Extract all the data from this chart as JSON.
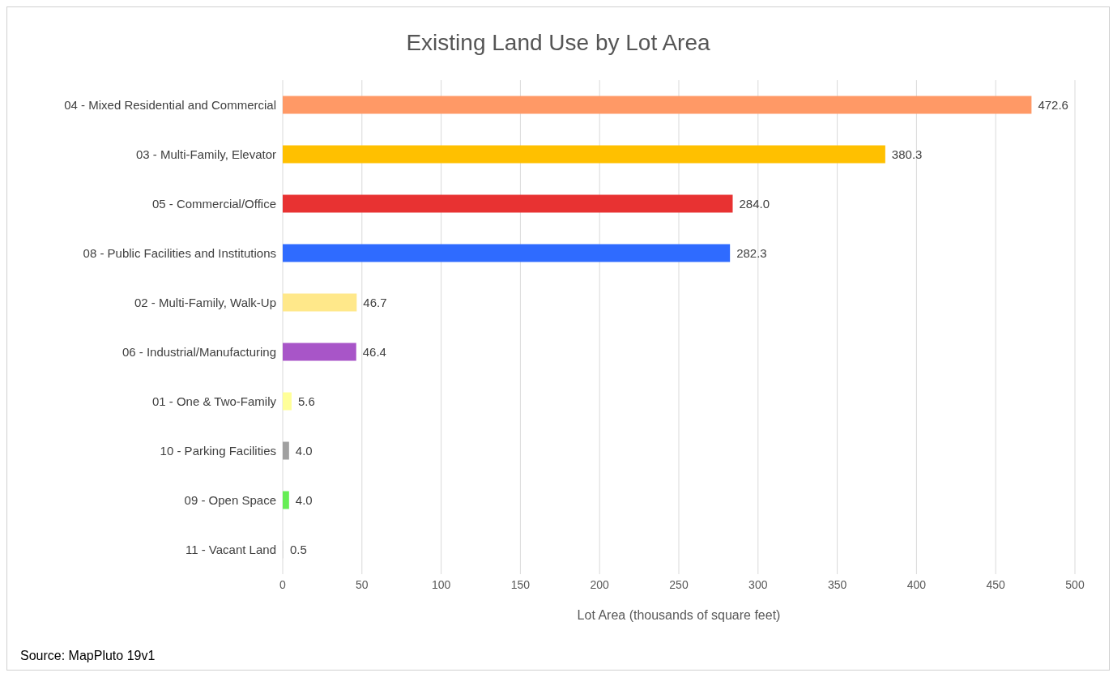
{
  "chart_data": {
    "type": "bar",
    "orientation": "horizontal",
    "title": "Existing Land Use by Lot Area",
    "xlabel": "Lot Area  (thousands of square feet)",
    "categories": [
      "04 - Mixed Residential and Commercial",
      "03 - Multi-Family, Elevator",
      "05 - Commercial/Office",
      "08 - Public Facilities and Institutions",
      "02 - Multi-Family, Walk-Up",
      "06 - Industrial/Manufacturing",
      "01 - One & Two-Family",
      "10 - Parking Facilities",
      "09 - Open Space",
      "11 - Vacant Land"
    ],
    "values": [
      472.6,
      380.3,
      284.0,
      282.3,
      46.7,
      46.4,
      5.6,
      4.0,
      4.0,
      0.5
    ],
    "value_labels": [
      "472.6",
      "380.3",
      "284.0",
      "282.3",
      "46.7",
      "46.4",
      "5.6",
      "4.0",
      "4.0",
      "0.5"
    ],
    "colors": [
      "#ff9966",
      "#ffc000",
      "#e83232",
      "#2f6bff",
      "#ffe88a",
      "#a855c8",
      "#ffff99",
      "#a0a0a0",
      "#66ee55",
      "#dddddd"
    ],
    "xlim": [
      0,
      500
    ],
    "xticks": [
      0,
      50,
      100,
      150,
      200,
      250,
      300,
      350,
      400,
      450,
      500
    ],
    "grid": "x",
    "annotations": [
      "Source: MapPluto 19v1"
    ]
  }
}
